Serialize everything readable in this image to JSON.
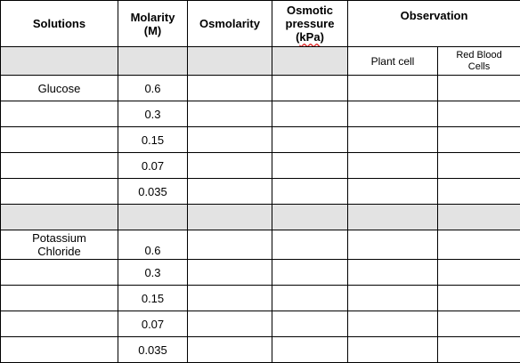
{
  "table": {
    "headers": {
      "solutions": "Solutions",
      "molarity_line1": "Molarity",
      "molarity_line2": "(M)",
      "osmolarity": "Osmolarity",
      "osmotic_line1": "Osmotic",
      "osmotic_line2": "pressure",
      "osmotic_line3_open": "(",
      "osmotic_line3_unit": "kPa",
      "osmotic_line3_close": ")",
      "observation": "Observation",
      "plant_cell": "Plant cell",
      "rbc_line1": "Red Blood",
      "rbc_line2": "Cells"
    },
    "groups": [
      {
        "solution": "Glucose",
        "concentrations": [
          "0.6",
          "0.3",
          "0.15",
          "0.07",
          "0.035"
        ]
      },
      {
        "solution_line1": "Potassium",
        "solution_line2": "Chloride",
        "concentrations": [
          "0.6",
          "0.3",
          "0.15",
          "0.07",
          "0.035"
        ]
      }
    ]
  },
  "colors": {
    "border": "#000000",
    "shaded_row": "#e3e3e3",
    "spellcheck_underline": "#e02020"
  }
}
